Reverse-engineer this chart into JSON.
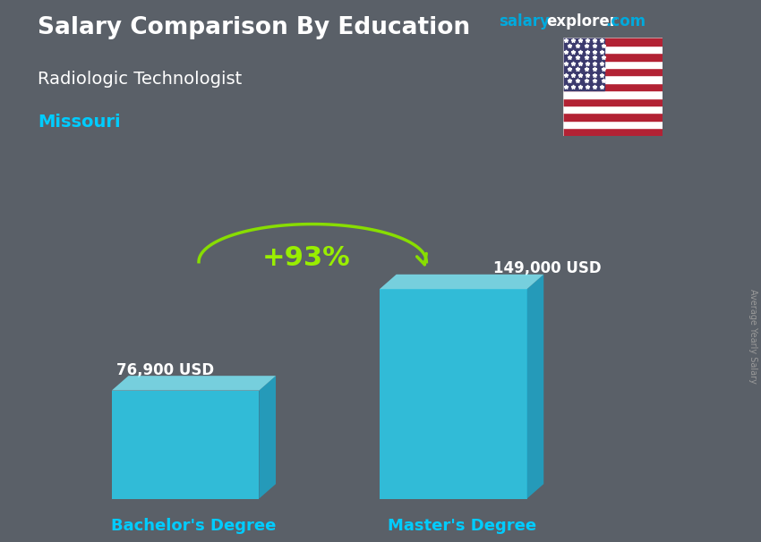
{
  "title1": "Salary Comparison By Education",
  "subtitle": "Radiologic Technologist",
  "location": "Missouri",
  "ylabel_rotated": "Average Yearly Salary",
  "categories": [
    "Bachelor's Degree",
    "Master's Degree"
  ],
  "values": [
    76900,
    149000
  ],
  "value_labels": [
    "76,900 USD",
    "149,000 USD"
  ],
  "pct_change": "+93%",
  "bar_color_face": "#29D0F0",
  "bar_color_side": "#1AA8CC",
  "bar_color_top": "#7DE8F8",
  "title_color": "#FFFFFF",
  "subtitle_color": "#FFFFFF",
  "location_color": "#00CCFF",
  "category_color": "#00CCFF",
  "value_label_color": "#FFFFFF",
  "pct_color": "#99EE00",
  "arrow_color": "#88DD00",
  "bg_color": "#5a6068",
  "watermark_salary_color": "#00AADD",
  "watermark_explorer_color": "#FFFFFF",
  "watermark_dot_color": "#00AADD",
  "sidebar_color": "#999999"
}
